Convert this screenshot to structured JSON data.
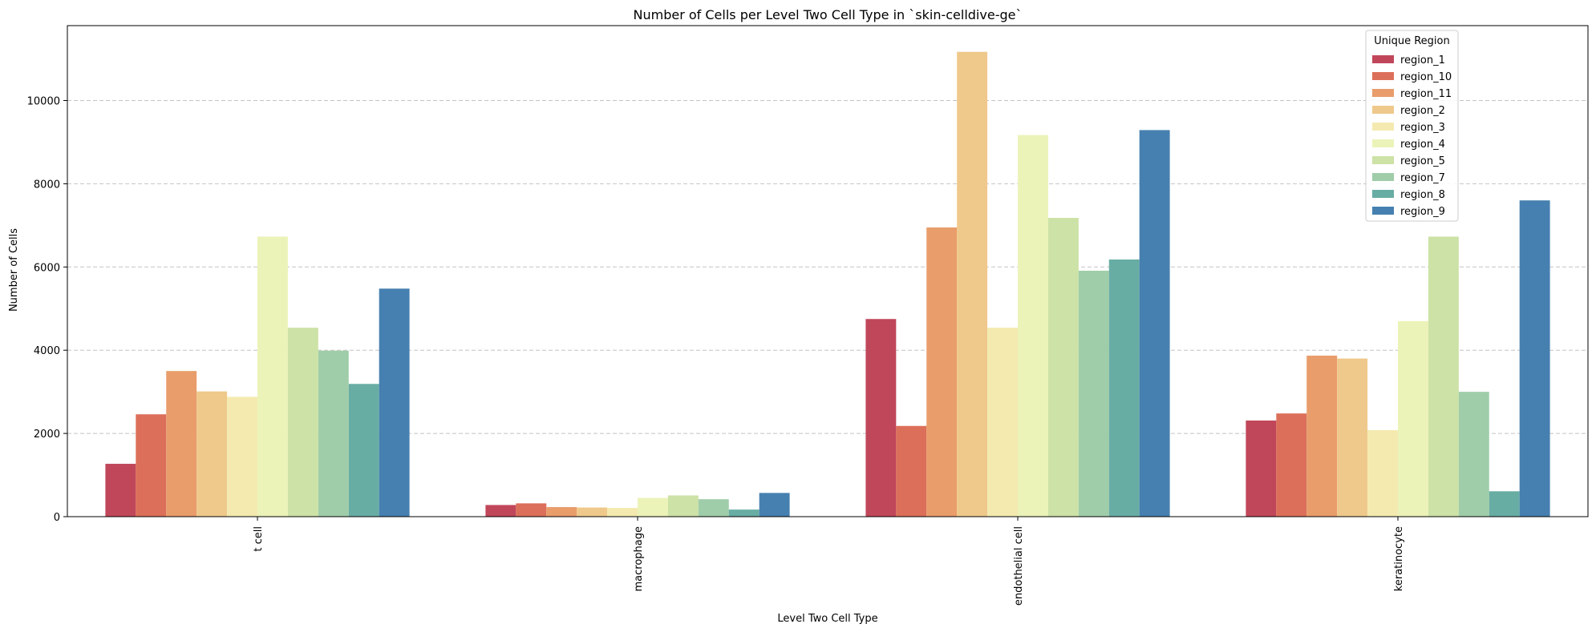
{
  "chart_data": {
    "type": "bar",
    "title": "Number of Cells per Level Two Cell Type in `skin-celldive-ge`",
    "xlabel": "Level Two Cell Type",
    "ylabel": "Number of Cells",
    "ylim": [
      0,
      11800
    ],
    "yticks": [
      0,
      2000,
      4000,
      6000,
      8000,
      10000
    ],
    "grid": "y-dashed",
    "legend": {
      "title": "Unique Region",
      "placement": "top-right"
    },
    "categories": [
      "t cell",
      "macrophage",
      "endothelial cell",
      "keratinocyte"
    ],
    "series": [
      {
        "name": "region_1",
        "color": "#c0475a",
        "values": [
          1270,
          280,
          4750,
          2310
        ]
      },
      {
        "name": "region_10",
        "color": "#dc6f59",
        "values": [
          2460,
          320,
          2180,
          2480
        ]
      },
      {
        "name": "region_11",
        "color": "#e89d6b",
        "values": [
          3500,
          230,
          6950,
          3870
        ]
      },
      {
        "name": "region_2",
        "color": "#efc98b",
        "values": [
          3010,
          220,
          11170,
          3800
        ]
      },
      {
        "name": "region_3",
        "color": "#f4eab0",
        "values": [
          2880,
          210,
          4540,
          2080
        ]
      },
      {
        "name": "region_4",
        "color": "#ecf3b8",
        "values": [
          6730,
          450,
          9170,
          4700
        ]
      },
      {
        "name": "region_5",
        "color": "#cde2a6",
        "values": [
          4540,
          510,
          7180,
          6730
        ]
      },
      {
        "name": "region_7",
        "color": "#a0cda9",
        "values": [
          3990,
          420,
          5910,
          3000
        ]
      },
      {
        "name": "region_8",
        "color": "#68ada4",
        "values": [
          3190,
          170,
          6180,
          610
        ]
      },
      {
        "name": "region_9",
        "color": "#4680b0",
        "values": [
          5480,
          570,
          9290,
          7600
        ]
      }
    ]
  }
}
